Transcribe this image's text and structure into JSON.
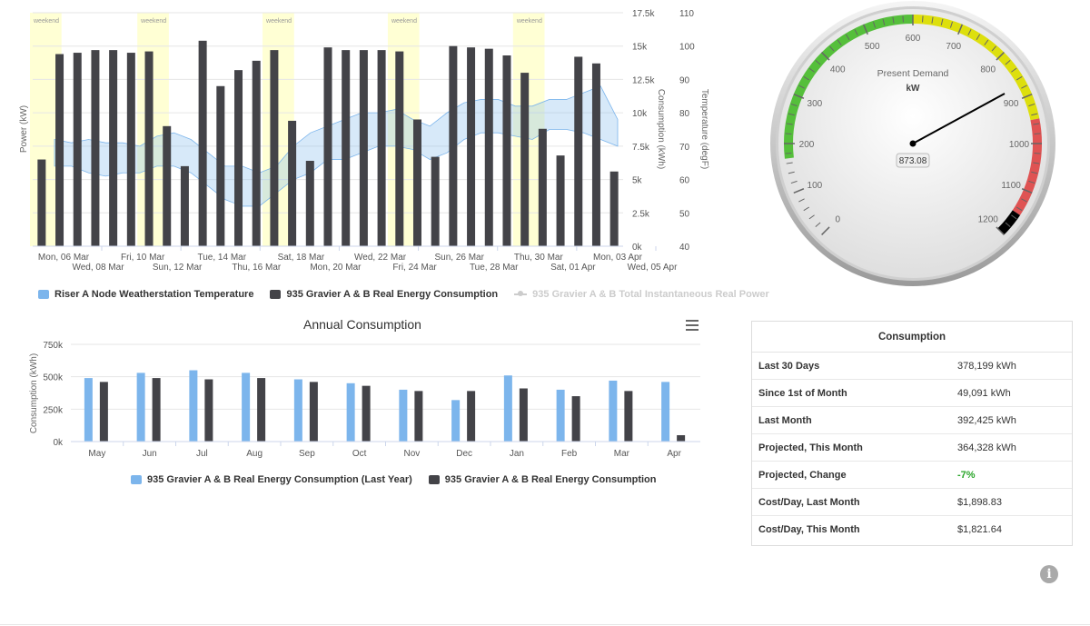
{
  "top_chart": {
    "chart_data": {
      "type": "bar",
      "title": "",
      "plot_band_label": "weekend",
      "weekend_bands_x_index": [
        [
          0,
          1
        ],
        [
          6,
          7
        ],
        [
          13,
          14
        ],
        [
          20,
          21
        ],
        [
          27,
          28
        ]
      ],
      "x_tick_labels_row1": [
        "Mon, 06 Mar",
        "Fri, 10 Mar",
        "Tue, 14 Mar",
        "Sat, 18 Mar",
        "Wed, 22 Mar",
        "Sun, 26 Mar",
        "Thu, 30 Mar",
        "Mon, 03 Apr"
      ],
      "x_tick_labels_row2": [
        "Wed, 08 Mar",
        "Sun, 12 Mar",
        "Thu, 16 Mar",
        "Mon, 20 Mar",
        "Fri, 24 Mar",
        "Tue, 28 Mar",
        "Sat, 01 Apr",
        "Wed, 05 Apr"
      ],
      "y_left_label": "Power (kW)",
      "y_right1_label": "Consumption (kWh)",
      "y_right1_ticks": [
        "17.5k",
        "15k",
        "12.5k",
        "10k",
        "7.5k",
        "5k",
        "2.5k",
        "0k"
      ],
      "y_right1_ylim": [
        0,
        17500
      ],
      "y_right2_label": "Temperature (degF)",
      "y_right2_ticks": [
        "110",
        "100",
        "90",
        "80",
        "70",
        "60",
        "50",
        "40"
      ],
      "y_right2_ylim": [
        40,
        110
      ],
      "series": [
        {
          "name": "935 Gravier A & B Real Energy Consumption",
          "color": "#434348",
          "axis": "consumption",
          "values": [
            6500,
            14400,
            14500,
            14700,
            14700,
            14500,
            14600,
            9000,
            6000,
            15400,
            12000,
            13200,
            13900,
            14700,
            9400,
            6400,
            14900,
            14700,
            14700,
            14700,
            14600,
            9500,
            6700,
            15000,
            14900,
            14800,
            14300,
            13000,
            8800,
            6800,
            14200,
            13700,
            5600
          ]
        }
      ],
      "temperature_band": {
        "name": "Riser A Node Weatherstation Temperature",
        "color": "#7cb5ec",
        "low": [
          64,
          64,
          62,
          61,
          62,
          62,
          64,
          64,
          62,
          58,
          54,
          52,
          52,
          56,
          60,
          62,
          66,
          66,
          68,
          70,
          70,
          69,
          66,
          68,
          72,
          74,
          74,
          73,
          72,
          75,
          75,
          74,
          72,
          70
        ],
        "high": [
          72,
          71,
          72,
          71,
          71,
          70,
          73,
          74,
          72,
          68,
          64,
          64,
          62,
          64,
          70,
          74,
          76,
          78,
          80,
          80,
          81,
          78,
          76,
          80,
          83,
          84,
          84,
          82,
          82,
          84,
          84,
          86,
          88,
          78
        ]
      }
    },
    "legend": {
      "item1": "Riser A Node Weatherstation Temperature",
      "item2": "935 Gravier A & B Real Energy Consumption",
      "item3": "935 Gravier A & B Total Instantaneous Real Power",
      "color1": "#7cb5ec",
      "color2": "#434348"
    }
  },
  "gauge": {
    "title": "Present Demand",
    "unit": "kW",
    "value": 873.08,
    "value_label": "873.08",
    "min": 0,
    "max": 1200,
    "tick_labels": [
      "0",
      "100",
      "200",
      "300",
      "400",
      "500",
      "600",
      "700",
      "800",
      "900",
      "1000",
      "1100",
      "1200"
    ],
    "bands": {
      "green_to": 600,
      "yellow_to": 950,
      "red_to": 1150
    },
    "colors": {
      "green": "#55bf3b",
      "yellow": "#dddf0d",
      "red": "#df5353",
      "black": "#000000"
    }
  },
  "annual_chart": {
    "menu_icon": "hamburger-menu-icon",
    "chart_data": {
      "type": "bar",
      "title": "Annual Consumption",
      "ylabel": "Consumption (kWh)",
      "y_ticks": [
        "750k",
        "500k",
        "250k",
        "0k"
      ],
      "ylim": [
        0,
        750000
      ],
      "categories": [
        "May",
        "Jun",
        "Jul",
        "Aug",
        "Sep",
        "Oct",
        "Nov",
        "Dec",
        "Jan",
        "Feb",
        "Mar",
        "Apr"
      ],
      "series": [
        {
          "name": "935 Gravier A & B Real Energy Consumption (Last Year)",
          "color": "#7cb5ec",
          "values": [
            490000,
            530000,
            550000,
            530000,
            480000,
            450000,
            400000,
            320000,
            510000,
            400000,
            470000,
            460000
          ]
        },
        {
          "name": "935 Gravier A & B Real Energy Consumption",
          "color": "#434348",
          "values": [
            460000,
            490000,
            480000,
            490000,
            460000,
            430000,
            390000,
            390000,
            410000,
            350000,
            390000,
            49091
          ]
        }
      ]
    },
    "legend": {
      "item1": "935 Gravier A & B Real Energy Consumption (Last Year)",
      "item2": "935 Gravier A & B Real Energy Consumption"
    }
  },
  "consumption_table": {
    "title": "Consumption",
    "rows": [
      {
        "label": "Last 30 Days",
        "value": "378,199 kWh"
      },
      {
        "label": "Since 1st of Month",
        "value": "49,091 kWh"
      },
      {
        "label": "Last Month",
        "value": "392,425 kWh"
      },
      {
        "label": "Projected, This Month",
        "value": "364,328 kWh"
      },
      {
        "label": "Projected, Change",
        "value": "-7%"
      },
      {
        "label": "Cost/Day, Last Month",
        "value": "$1,898.83"
      },
      {
        "label": "Cost/Day, This Month",
        "value": "$1,821.64"
      }
    ],
    "change_color": "#2aa52a"
  },
  "info_icon": {
    "name": "info-icon",
    "glyph": "i"
  }
}
